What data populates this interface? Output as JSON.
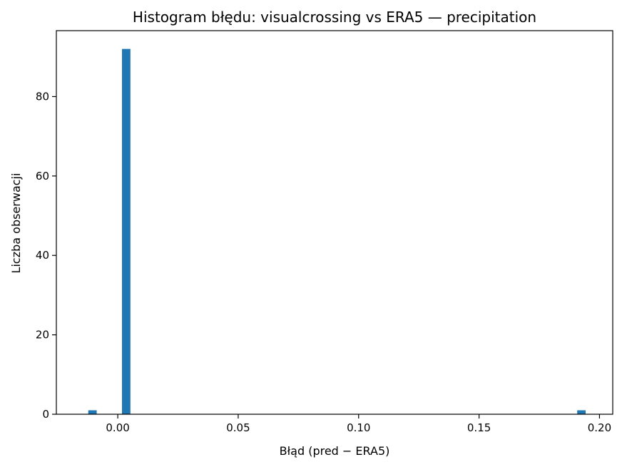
{
  "chart_data": {
    "type": "bar",
    "title": "Histogram błędu: visualcrossing vs ERA5 — precipitation",
    "xlabel": "Błąd (pred − ERA5)",
    "ylabel": "Liczba obserwacji",
    "xlim": [
      -0.0255,
      0.2055
    ],
    "ylim": [
      0,
      96.6
    ],
    "xticks": [
      0.0,
      0.05,
      0.1,
      0.15,
      0.2
    ],
    "xtick_labels": [
      "0.00",
      "0.05",
      "0.10",
      "0.15",
      "0.20"
    ],
    "yticks": [
      0,
      20,
      40,
      60,
      80
    ],
    "ytick_labels": [
      "0",
      "20",
      "40",
      "60",
      "80"
    ],
    "bin_width": 0.0035,
    "bars": [
      {
        "x": -0.0105,
        "count": 1
      },
      {
        "x": 0.0035,
        "count": 92
      },
      {
        "x": 0.1925,
        "count": 1
      }
    ],
    "bar_color": "#1f77b4",
    "grid": false,
    "legend": "none"
  }
}
